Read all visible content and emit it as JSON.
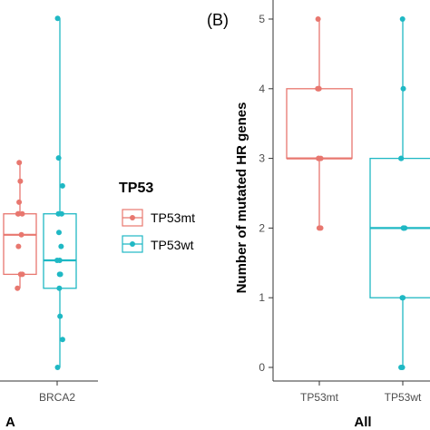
{
  "colors": {
    "mt": "#e8776f",
    "wt": "#1fb8c4",
    "axis": "#333333"
  },
  "legend": {
    "title": "TP53",
    "items": [
      {
        "label": "TP53mt",
        "color": "#e8776f"
      },
      {
        "label": "TP53wt",
        "color": "#1fb8c4"
      }
    ]
  },
  "chart_data": [
    {
      "type": "box",
      "panel_label": "",
      "title": "A",
      "xlabel": "",
      "ylabel": "",
      "categories": [
        "BRCA2"
      ],
      "series": [
        {
          "name": "TP53mt",
          "min": 1.7,
          "q1": 2.0,
          "median": 2.85,
          "q3": 3.3,
          "max": 4.4,
          "points": [
            1.7,
            2.0,
            2.0,
            2.6,
            2.85,
            3.3,
            3.3,
            3.3,
            3.55,
            4.0,
            4.4
          ]
        },
        {
          "name": "TP53wt",
          "min": 0.0,
          "q1": 1.7,
          "median": 2.3,
          "q3": 3.3,
          "max": 7.5,
          "points": [
            0.0,
            0.6,
            1.1,
            1.7,
            2.0,
            2.0,
            2.3,
            2.3,
            2.6,
            2.9,
            3.3,
            3.3,
            3.9,
            4.5,
            7.5
          ]
        }
      ]
    },
    {
      "type": "box",
      "panel_label": "(B)",
      "title": "All",
      "xlabel": "",
      "ylabel": "Number of mutated HR genes",
      "ylim": [
        0,
        5
      ],
      "yticks": [
        0,
        1,
        2,
        3,
        4,
        5
      ],
      "categories": [
        "TP53mt",
        "TP53wt"
      ],
      "series": [
        {
          "name": "TP53mt",
          "min": 2,
          "q1": 3,
          "median": 3,
          "q3": 4,
          "max": 5,
          "points": [
            2,
            2,
            3,
            3,
            3,
            4,
            4,
            4,
            5
          ]
        },
        {
          "name": "TP53wt",
          "min": 0,
          "q1": 1,
          "median": 2,
          "q3": 3,
          "max": 5,
          "points": [
            0,
            0,
            1,
            1,
            2,
            2,
            2,
            3,
            3,
            4,
            5
          ]
        }
      ]
    }
  ]
}
